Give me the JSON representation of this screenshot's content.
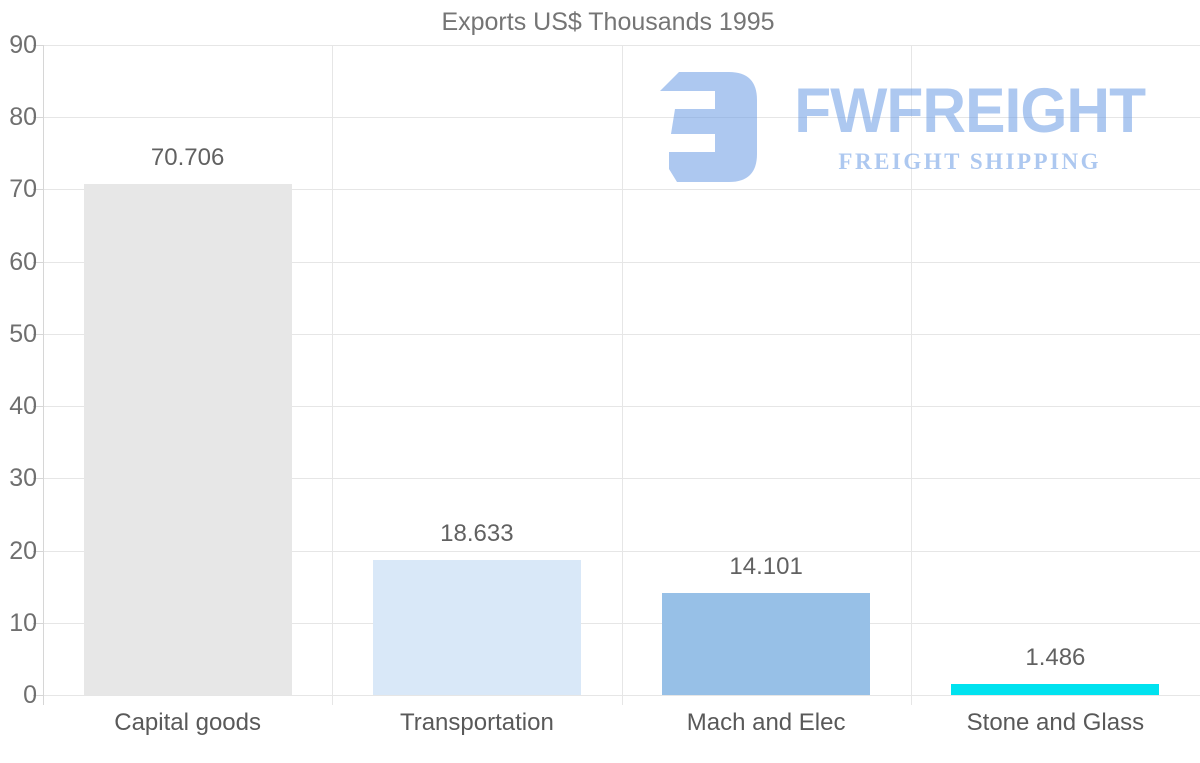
{
  "chart_data": {
    "type": "bar",
    "title": "Exports US$ Thousands 1995",
    "categories": [
      "Capital goods",
      "Transportation",
      "Mach and Elec",
      "Stone and Glass"
    ],
    "values": [
      70.706,
      18.633,
      14.101,
      1.486
    ],
    "value_labels": [
      "70.706",
      "18.633",
      "14.101",
      "1.486"
    ],
    "bar_colors": [
      "#e7e7e7",
      "#d9e8f8",
      "#97c0e7",
      "#00e2ef"
    ],
    "xlabel": "",
    "ylabel": "",
    "ylim": [
      0,
      90
    ],
    "yticks": [
      0,
      10,
      20,
      30,
      40,
      50,
      60,
      70,
      80,
      90
    ],
    "grid": true,
    "legend": "none",
    "colors": {
      "grid": "#e6e6e6",
      "axis": "#d6d6d6",
      "title_text": "#757575",
      "tick_text": "#6f6f6f",
      "value_text": "#616161",
      "category_text": "#595959",
      "background": "#ffffff"
    }
  },
  "watermark": {
    "brand": "FWFREIGHT",
    "tagline": "FREIGHT SHIPPING",
    "color": "#6b9ce5",
    "icon": "fwfreight-logo-icon"
  }
}
